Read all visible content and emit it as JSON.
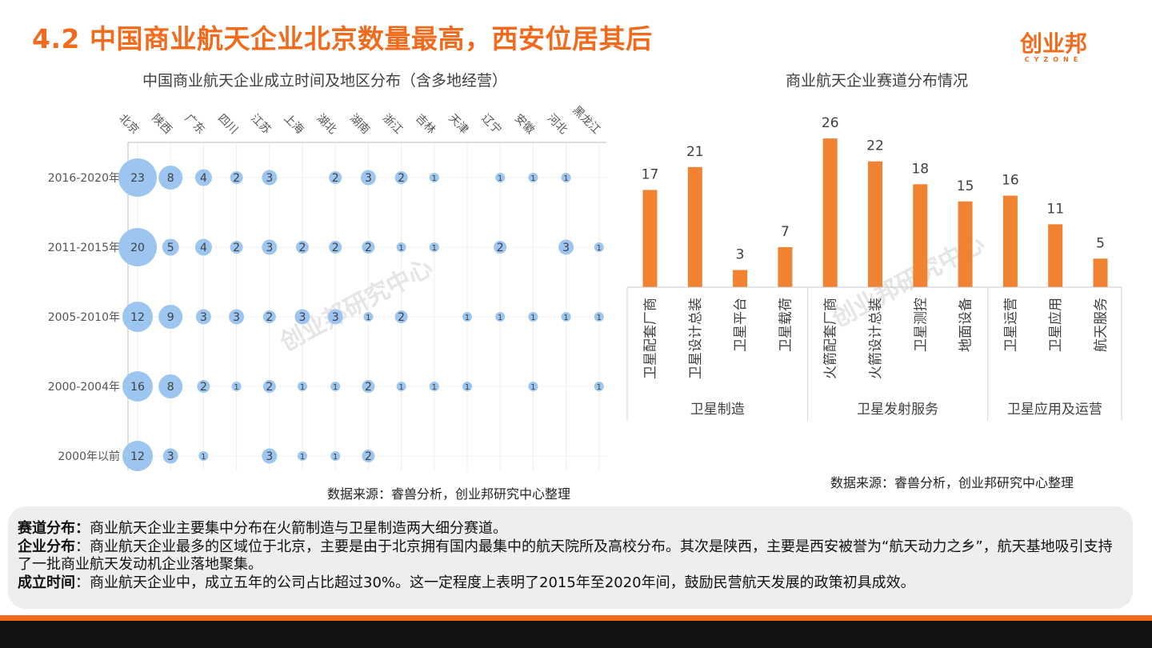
{
  "header": {
    "title": "4.2 中国商业航天企业北京数量最高，西安位居其后",
    "logo_cn": "创业邦",
    "logo_en": "CYZONE"
  },
  "chart_data": [
    {
      "type": "scatter",
      "title": "中国商业航天企业成立时间及地区分布（含多地经营）",
      "columns": [
        "北京",
        "陕西",
        "广东",
        "四川",
        "江苏",
        "上海",
        "湖北",
        "湖南",
        "浙江",
        "吉林",
        "天津",
        "辽宁",
        "安徽",
        "河北",
        "黑龙江"
      ],
      "rows": [
        "2016-2020年",
        "2011-2015年",
        "2005-2010年",
        "2000-2004年",
        "2000年以前"
      ],
      "values": [
        [
          23,
          8,
          4,
          2,
          3,
          null,
          2,
          3,
          2,
          1,
          null,
          1,
          1,
          1,
          null
        ],
        [
          20,
          5,
          4,
          2,
          3,
          2,
          2,
          2,
          1,
          1,
          null,
          2,
          null,
          3,
          1
        ],
        [
          12,
          9,
          3,
          3,
          2,
          3,
          3,
          1,
          2,
          null,
          1,
          1,
          1,
          1,
          1
        ],
        [
          16,
          8,
          2,
          1,
          2,
          1,
          1,
          2,
          1,
          1,
          1,
          null,
          1,
          null,
          1
        ],
        [
          12,
          3,
          1,
          null,
          3,
          1,
          1,
          2,
          null,
          null,
          null,
          null,
          null,
          null,
          null
        ]
      ],
      "bubble_color": "#9cc6ef",
      "label_color": "#404040",
      "watermark": "创业邦研究中心"
    },
    {
      "type": "bar",
      "title": "商业航天企业赛道分布情况",
      "categories": [
        "卫星配套厂商",
        "卫星设计总装",
        "卫星平台",
        "卫星载荷",
        "火箭配套厂商",
        "火箭设计总装",
        "卫星测控",
        "地面设备",
        "卫星运营",
        "卫星应用",
        "航天服务"
      ],
      "groups": [
        {
          "name": "卫星制造",
          "count": 4
        },
        {
          "name": "卫星发射服务",
          "count": 4
        },
        {
          "name": "卫星应用及运营",
          "count": 3
        }
      ],
      "values": [
        17,
        21,
        3,
        7,
        26,
        22,
        18,
        15,
        16,
        11,
        5
      ],
      "bar_color": "#f08232",
      "watermark": "创业邦研究中心"
    }
  ],
  "sources": {
    "left": "数据来源：睿兽分析，创业邦研究中心整理",
    "right": "数据来源：睿兽分析，创业邦研究中心整理"
  },
  "summary": {
    "line1_label": "赛道分布：",
    "line1_text": "商业航天企业主要集中分布在火箭制造与卫星制造两大细分赛道。",
    "line2_label": "企业分布",
    "line2_text": "：商业航天企业最多的区域位于北京，主要是由于北京拥有国内最集中的航天院所及高校分布。其次是陕西，主要是西安被誉为“航天动力之乡”，航天基地吸引支持了一批商业航天发动机企业落地聚集。",
    "line3_label": "成立时间",
    "line3_text": "：商业航天企业中，成立五年的公司占比超过30%。这一定程度上表明了2015年至2020年间，鼓励民营航天发展的政策初具成效。"
  },
  "colors": {
    "accent": "#f26b1d",
    "panel": "#eeeeee"
  }
}
